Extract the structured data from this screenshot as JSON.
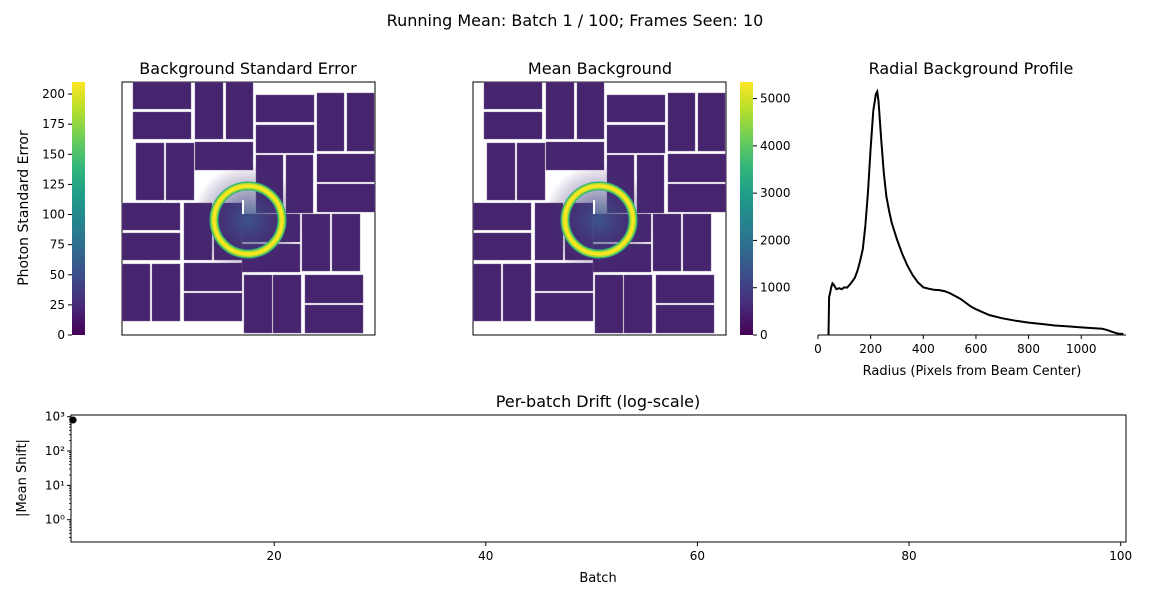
{
  "figure": {
    "suptitle": "Running Mean: Batch 1 / 100; Frames Seen: 10"
  },
  "colors": {
    "viridis": [
      "#440154",
      "#482878",
      "#3e4989",
      "#31688e",
      "#26828e",
      "#1f9e89",
      "#35b779",
      "#6ece58",
      "#b5de2b",
      "#fde725"
    ],
    "line": "#000000",
    "tile_base": "#46256e",
    "tile_light": "#3b5a8e"
  },
  "panels": {
    "std_error": {
      "title": "Background Standard Error",
      "colorbar_label": "Photon Standard Error",
      "colorbar_ticks": [
        "0",
        "25",
        "50",
        "75",
        "100",
        "125",
        "150",
        "175",
        "200"
      ],
      "colorbar_range": [
        0,
        210
      ]
    },
    "mean_bg": {
      "title": "Mean Background",
      "colorbar_ticks": [
        "0",
        "1000",
        "2000",
        "3000",
        "4000",
        "5000"
      ],
      "colorbar_range": [
        0,
        5350
      ]
    }
  },
  "chart_data": [
    {
      "type": "line",
      "title": "Radial Background Profile",
      "xlabel": "Radius (Pixels from Beam Center)",
      "ylabel": "",
      "xlim": [
        0,
        1170
      ],
      "ylim": [
        0,
        5300
      ],
      "xticks": [
        "0",
        "200",
        "400",
        "600",
        "800",
        "1000"
      ],
      "series": [
        {
          "x": [
            40,
            42,
            45,
            50,
            55,
            60,
            70,
            80,
            90,
            100,
            110,
            120,
            130,
            140,
            150,
            160,
            170,
            180,
            190,
            200,
            210,
            220,
            225,
            230,
            240,
            250,
            260,
            270,
            280,
            300,
            320,
            340,
            360,
            380,
            400,
            420,
            440,
            460,
            480,
            500,
            520,
            540,
            560,
            580,
            600,
            650,
            700,
            750,
            800,
            850,
            900,
            950,
            1000,
            1050,
            1080,
            1100,
            1120,
            1140,
            1160
          ],
          "y": [
            0,
            800,
            850,
            1000,
            1080,
            1050,
            960,
            980,
            960,
            1000,
            990,
            1050,
            1120,
            1200,
            1350,
            1550,
            1800,
            2300,
            3000,
            3900,
            4700,
            5050,
            5100,
            4900,
            4100,
            3400,
            2900,
            2600,
            2350,
            2000,
            1700,
            1450,
            1250,
            1100,
            1000,
            970,
            950,
            940,
            920,
            880,
            820,
            760,
            680,
            600,
            540,
            420,
            350,
            300,
            260,
            230,
            200,
            180,
            160,
            140,
            130,
            100,
            60,
            30,
            20
          ]
        }
      ]
    },
    {
      "type": "scatter",
      "title": "Per-batch Drift (log-scale)",
      "xlabel": "Batch",
      "ylabel": "|Mean Shift|",
      "xlim": [
        0.8,
        100.5
      ],
      "ylim_log10": [
        -0.65,
        3.05
      ],
      "yscale": "log",
      "xticks": [
        "20",
        "40",
        "60",
        "80",
        "100"
      ],
      "yticks": [
        "10⁰",
        "10¹",
        "10²",
        "10³"
      ],
      "series": [
        {
          "x": [
            1
          ],
          "y": [
            800
          ]
        }
      ]
    }
  ]
}
